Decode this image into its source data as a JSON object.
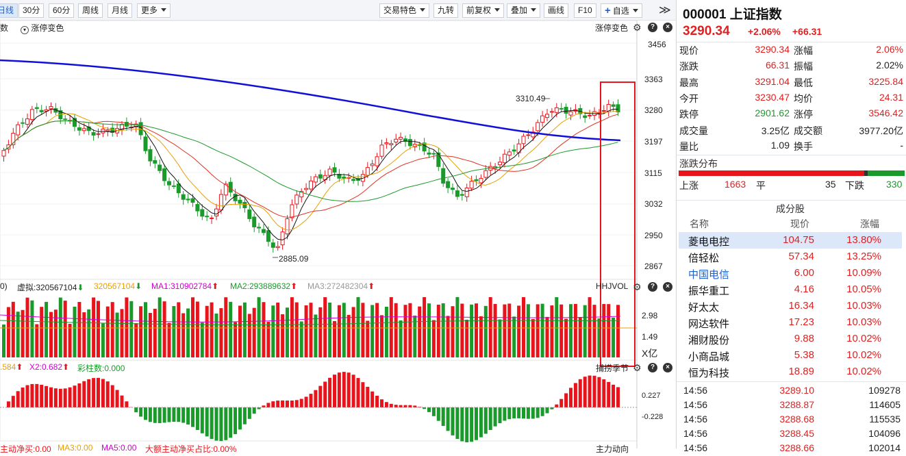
{
  "toolbar": {
    "period_buttons": [
      "日线",
      "30分",
      "60分",
      "周线",
      "月线"
    ],
    "more_label": "更多",
    "right_buttons": {
      "trade_features": "交易特色",
      "nine_turn": "九转",
      "adjust": "前复权",
      "overlay": "叠加",
      "draw": "画线",
      "f10": "F10",
      "add_watch": "自选"
    },
    "expand_glyph": "≫"
  },
  "chart": {
    "top_left_label": "数",
    "limit_change_toggle": "涨停变色",
    "limit_change_right": "涨停变色",
    "y_ticks": [
      "3456",
      "3363",
      "3280",
      "3197",
      "3115",
      "3032",
      "2950",
      "2867"
    ],
    "high_label": "3310.49",
    "low_label": "2885.09",
    "volume": {
      "lead": "0)",
      "virtual_label": "虚拟:320567104",
      "virtual_value": "320567104",
      "ma1": "MA1:310902784",
      "ma2": "MA2:293889632",
      "ma3": "MA3:272482304",
      "indicator_name": "HHJVOL",
      "y_ticks": [
        "2.98",
        "1.49"
      ],
      "unit": "X亿"
    },
    "macd": {
      "x1_label": ".584",
      "x2_label": "X2:0.682",
      "bar_count_label": "彩柱数:0.000",
      "indicator_name": "捕捞季节",
      "y_ticks": [
        "0.227",
        "-0.228"
      ]
    },
    "bottom": {
      "l1": "主动净买:0.00",
      "l2": "MA3:0.00",
      "l3": "MA5:0.00",
      "l4": "大额主动净买占比:0.00%",
      "right": "主力动向"
    },
    "colors": {
      "up": "#e8141b",
      "down": "#1a9a2a",
      "ma250": "#1010d8",
      "highlight": "#e8141b"
    }
  },
  "panel": {
    "code": "000001",
    "name": "上证指数",
    "price": "3290.34",
    "change_pct": "+2.06%",
    "change": "+66.31",
    "quotes": [
      {
        "l1": "现价",
        "v1": "3290.34",
        "c1": "red",
        "l2": "涨幅",
        "v2": "2.06%",
        "c2": "red"
      },
      {
        "l1": "涨跌",
        "v1": "66.31",
        "c1": "red",
        "l2": "振幅",
        "v2": "2.02%",
        "c2": "blk"
      },
      {
        "l1": "最高",
        "v1": "3291.04",
        "c1": "red",
        "l2": "最低",
        "v2": "3225.84",
        "c2": "red"
      },
      {
        "l1": "今开",
        "v1": "3230.47",
        "c1": "red",
        "l2": "均价",
        "v2": "24.31",
        "c2": "red"
      },
      {
        "l1": "跌停",
        "v1": "2901.62",
        "c1": "grn",
        "l2": "涨停",
        "v2": "3546.42",
        "c2": "red"
      },
      {
        "l1": "成交量",
        "v1": "3.25亿",
        "c1": "blk",
        "l2": "成交额",
        "v2": "3977.20亿",
        "c2": "blk"
      },
      {
        "l1": "量比",
        "v1": "1.09",
        "c1": "blk",
        "l2": "换手",
        "v2": "-",
        "c2": "blk"
      }
    ],
    "distribution": {
      "title": "涨跌分布",
      "up_label": "上涨",
      "up": "1663",
      "flat_label": "平",
      "flat": "35",
      "down_label": "下跌",
      "down": "330",
      "up_count": 1663,
      "flat_count": 35,
      "down_count": 330
    },
    "components": {
      "title": "成分股",
      "headers": [
        "名称",
        "现价",
        "涨幅"
      ],
      "rows": [
        {
          "name": "菱电电控",
          "price": "104.75",
          "pct": "13.80%",
          "selected": true
        },
        {
          "name": "倍轻松",
          "price": "57.34",
          "pct": "13.25%"
        },
        {
          "name": "中国电信",
          "price": "6.00",
          "pct": "10.09%",
          "blue": true
        },
        {
          "name": "振华重工",
          "price": "4.16",
          "pct": "10.05%"
        },
        {
          "name": "好太太",
          "price": "16.34",
          "pct": "10.03%"
        },
        {
          "name": "网达软件",
          "price": "17.23",
          "pct": "10.03%"
        },
        {
          "name": "湘财股份",
          "price": "9.88",
          "pct": "10.02%"
        },
        {
          "name": "小商品城",
          "price": "5.38",
          "pct": "10.02%"
        },
        {
          "name": "恒为科技",
          "price": "18.89",
          "pct": "10.02%"
        }
      ]
    },
    "ticks": [
      {
        "time": "14:56",
        "price": "3289.10",
        "vol": "109278"
      },
      {
        "time": "14:56",
        "price": "3288.87",
        "vol": "114605"
      },
      {
        "time": "14:56",
        "price": "3288.68",
        "vol": "115535"
      },
      {
        "time": "14:56",
        "price": "3288.45",
        "vol": "104096"
      },
      {
        "time": "14:56",
        "price": "3288.66",
        "vol": "102014"
      }
    ]
  }
}
